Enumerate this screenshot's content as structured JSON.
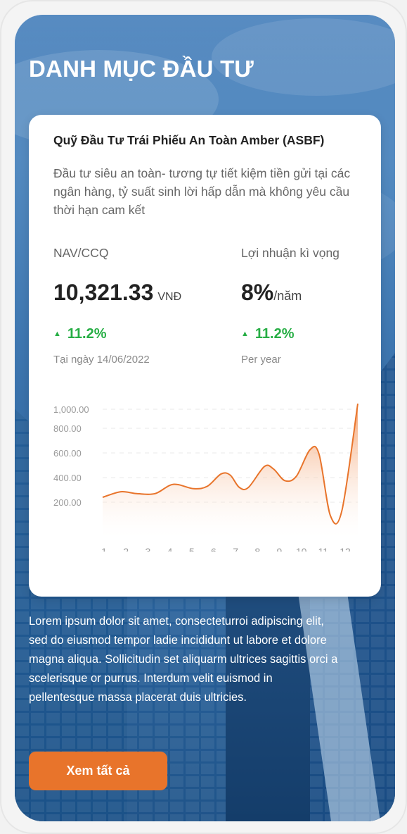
{
  "page": {
    "title": "DANH MỤC ĐẦU TƯ"
  },
  "fund": {
    "name": "Quỹ Đầu Tư Trái Phiếu An Toàn Amber (ASBF)",
    "description": "Đầu tư siêu an toàn- tương tự tiết kiệm tiền gửi tại các ngân hàng, tỷ suất sinh lời hấp dẫn mà không yêu cầu thời hạn cam kết",
    "nav": {
      "label": "NAV/CCQ",
      "value": "10,321.33",
      "unit": "VNĐ",
      "change": "11.2%",
      "date": "Tại ngày 14/06/2022"
    },
    "expected": {
      "label": "Lợi nhuận kì vọng",
      "value": "8%",
      "unit": "/năm",
      "change": "11.2%",
      "period": "Per year"
    }
  },
  "chart_data": {
    "type": "area",
    "x": [
      1,
      2,
      3,
      4,
      5,
      6,
      7,
      8,
      9,
      10,
      11,
      12
    ],
    "xtick_labels": [
      "1",
      "2",
      "3",
      "4",
      "5",
      "6",
      "7",
      "8",
      "9",
      "10",
      "11",
      "12"
    ],
    "ytick_labels": [
      "1,000.00",
      "800.00",
      "600.00",
      "400.00",
      "200.00"
    ],
    "ytick_values": [
      1000,
      800,
      600,
      400,
      200
    ],
    "ylim": [
      0,
      1000
    ],
    "series": [
      {
        "points": [
          [
            1,
            240
          ],
          [
            1.8,
            285
          ],
          [
            2.5,
            270
          ],
          [
            3.3,
            270
          ],
          [
            4.1,
            345
          ],
          [
            5.0,
            310
          ],
          [
            5.6,
            330
          ],
          [
            6.2,
            430
          ],
          [
            6.6,
            420
          ],
          [
            7.0,
            320
          ],
          [
            7.4,
            320
          ],
          [
            8.1,
            490
          ],
          [
            8.5,
            470
          ],
          [
            9.0,
            375
          ],
          [
            9.5,
            410
          ],
          [
            10.1,
            625
          ],
          [
            10.5,
            590
          ],
          [
            11.0,
            90
          ],
          [
            11.5,
            130
          ],
          [
            12.2,
            1000
          ]
        ]
      }
    ],
    "colors": {
      "line": "#e8742b",
      "fill_top": "#f39a63",
      "fill_bottom": "#ffffff",
      "grid": "#e8e8e8"
    },
    "grid": true
  },
  "body_text": "Lorem ipsum dolor sit amet, consecteturroi adipiscing elit, sed do eiusmod tempor ladie incididunt ut labore et dolore magna aliqua. Sollicitudin set aliquarm ultrices sagittis orci a scelerisque or purrus. Interdum velit euismod in pellentesque massa placerat duis ultricies.",
  "cta": {
    "label": "Xem tất cả",
    "color": "#e8742b"
  }
}
